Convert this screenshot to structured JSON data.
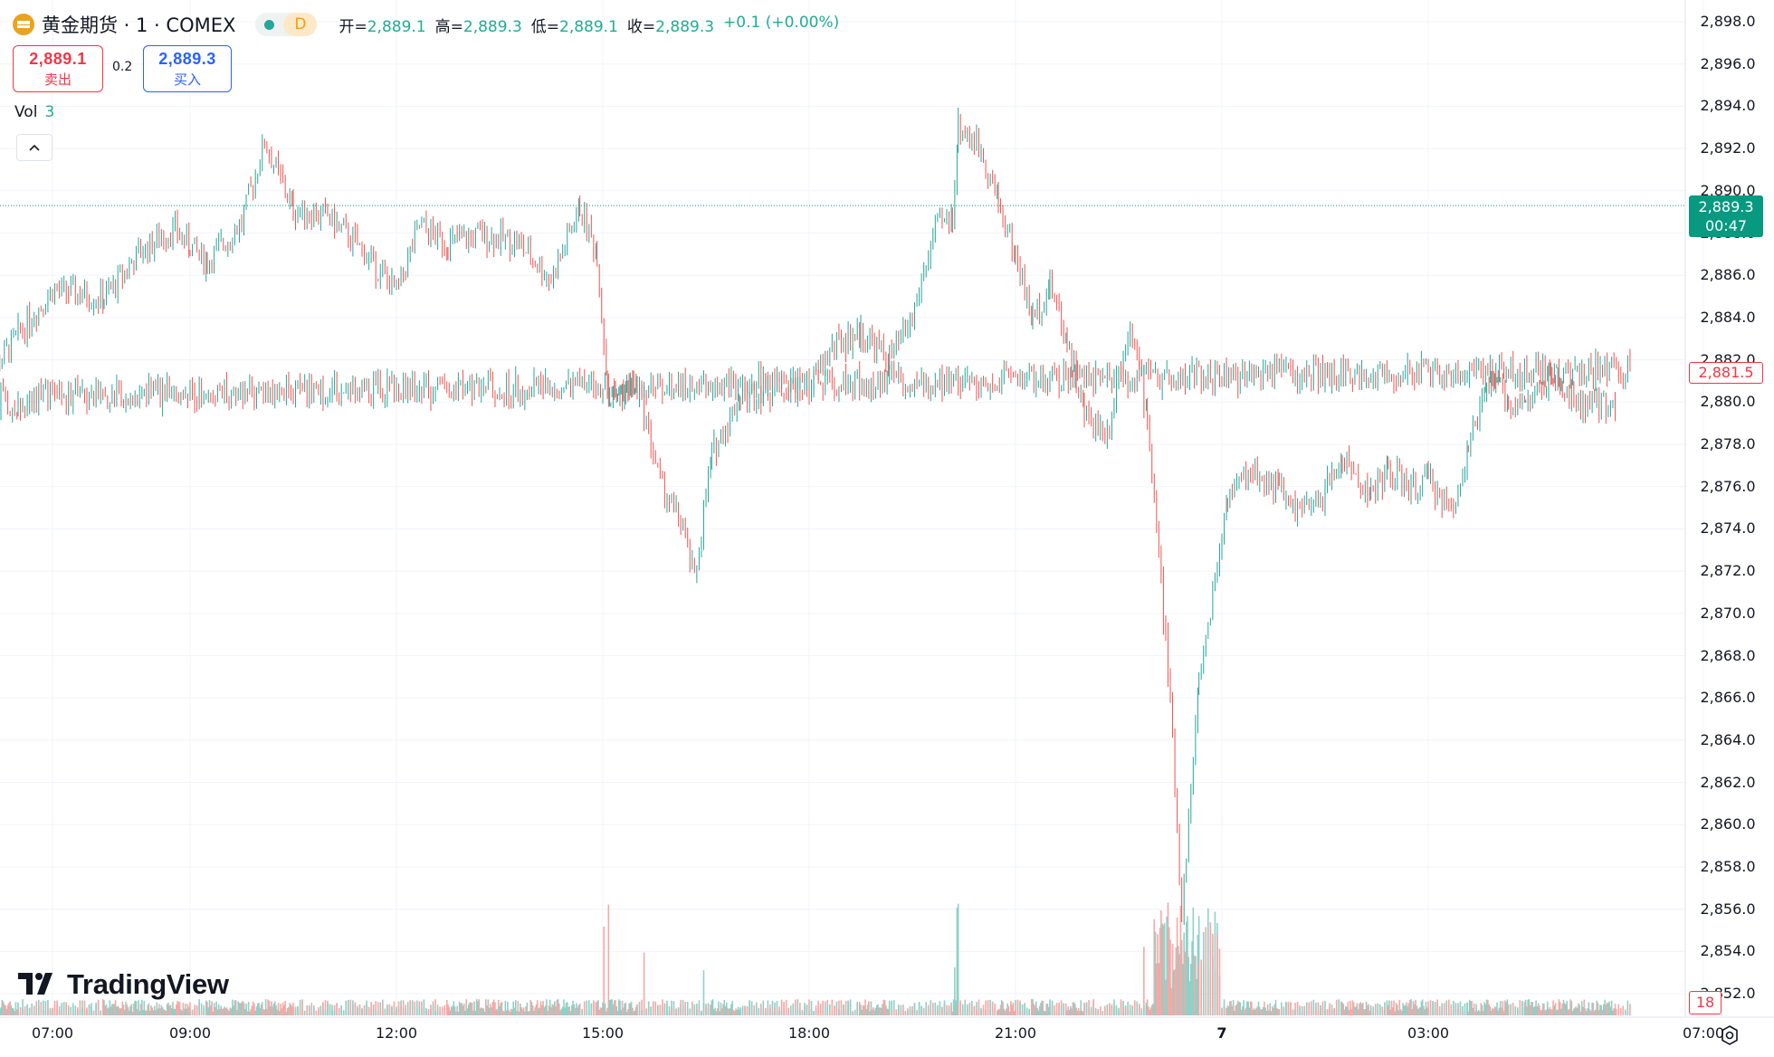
{
  "symbol": {
    "title": "黄金期货 · 1 · COMEX",
    "icon": "gold-bars-icon",
    "status_interval": "D"
  },
  "ohlc": {
    "open_label": "开=",
    "open": "2,889.1",
    "high_label": "高=",
    "high": "2,889.3",
    "low_label": "低=",
    "low": "2,889.1",
    "close_label": "收=",
    "close": "2,889.3",
    "change": "+0.1 (+0.00%)"
  },
  "trade": {
    "sell_price": "2,889.1",
    "sell_label": "卖出",
    "spread": "0.2",
    "buy_price": "2,889.3",
    "buy_label": "买入"
  },
  "volume_legend": {
    "label": "Vol",
    "value": "3"
  },
  "price_scale": {
    "ticks": [
      "2,898.0",
      "2,896.0",
      "2,894.0",
      "2,892.0",
      "2,890.0",
      "2,888.0",
      "2,886.0",
      "2,884.0",
      "2,882.0",
      "2,880.0",
      "2,878.0",
      "2,876.0",
      "2,874.0",
      "2,872.0",
      "2,870.0",
      "2,868.0",
      "2,866.0",
      "2,864.0",
      "2,862.0",
      "2,860.0",
      "2,858.0",
      "2,856.0",
      "2,854.0",
      "2,852.0"
    ],
    "last_price": "2,889.3",
    "countdown": "00:47",
    "line_price": "2,881.5",
    "volume_value": "18"
  },
  "time_scale": {
    "ticks": [
      "07:00",
      "09:00",
      "12:00",
      "15:00",
      "18:00",
      "21:00",
      "7",
      "03:00",
      "07:00"
    ]
  },
  "branding": {
    "logo_text": "TradingView"
  },
  "colors": {
    "up": "#26a69a",
    "down": "#ef5350",
    "up_volume": "#8fd0c8",
    "down_volume": "#f4a9a6",
    "last_price": "#089981",
    "grid": "#f0f3fa"
  },
  "chart_data": {
    "type": "candlestick",
    "symbol": "黄金期货 · 1 · COMEX",
    "interval": "1 minute",
    "y_axis": {
      "min": 2852.0,
      "max": 2898.0,
      "step": 2.0
    },
    "x_labels": [
      "07:00",
      "09:00",
      "12:00",
      "15:00",
      "18:00",
      "21:00",
      "7",
      "03:00",
      "07:00"
    ],
    "last_price": 2889.3,
    "price_line": 2881.5,
    "current_volume": 3,
    "close_path": [
      [
        "06:00",
        2880.8
      ],
      [
        "06:30",
        2883.2
      ],
      [
        "07:00",
        2885.3
      ],
      [
        "07:45",
        2884.9
      ],
      [
        "08:15",
        2887.0
      ],
      [
        "08:45",
        2888.2
      ],
      [
        "09:00",
        2887.4
      ],
      [
        "09:15",
        2886.6
      ],
      [
        "09:45",
        2888.5
      ],
      [
        "10:05",
        2892.3
      ],
      [
        "10:30",
        2889.1
      ],
      [
        "11:00",
        2888.8
      ],
      [
        "11:30",
        2887.2
      ],
      [
        "12:00",
        2885.2
      ],
      [
        "12:20",
        2888.3
      ],
      [
        "12:45",
        2887.5
      ],
      [
        "13:15",
        2887.9
      ],
      [
        "13:45",
        2887.6
      ],
      [
        "14:15",
        2885.8
      ],
      [
        "14:40",
        2889.2
      ],
      [
        "14:55",
        2887.0
      ],
      [
        "15:05",
        2880.1
      ],
      [
        "15:30",
        2880.9
      ],
      [
        "15:50",
        2876.2
      ],
      [
        "16:10",
        2874.0
      ],
      [
        "16:20",
        2871.5
      ],
      [
        "16:35",
        2877.5
      ],
      [
        "17:00",
        2880.3
      ],
      [
        "17:30",
        2880.6
      ],
      [
        "18:00",
        2880.7
      ],
      [
        "18:20",
        2882.6
      ],
      [
        "18:45",
        2883.3
      ],
      [
        "19:10",
        2882.0
      ],
      [
        "19:30",
        2884.0
      ],
      [
        "19:50",
        2888.2
      ],
      [
        "20:05",
        2888.8
      ],
      [
        "20:10",
        2893.1
      ],
      [
        "20:30",
        2892.0
      ],
      [
        "20:45",
        2889.5
      ],
      [
        "21:00",
        2886.9
      ],
      [
        "21:15",
        2883.9
      ],
      [
        "21:30",
        2885.6
      ],
      [
        "21:45",
        2883.0
      ],
      [
        "22:00",
        2879.4
      ],
      [
        "22:20",
        2878.6
      ],
      [
        "22:40",
        2884.0
      ],
      [
        "22:55",
        2879.3
      ],
      [
        "23:05",
        2872.8
      ],
      [
        "23:15",
        2865.8
      ],
      [
        "23:25",
        2855.8
      ],
      [
        "23:40",
        2866.8
      ],
      [
        "23:50",
        2870.2
      ],
      [
        "00:05",
        2875.6
      ],
      [
        "00:25",
        2876.7
      ],
      [
        "00:50",
        2876.0
      ],
      [
        "01:00",
        2875.0
      ],
      [
        "01:20",
        2874.9
      ],
      [
        "01:45",
        2877.3
      ],
      [
        "02:10",
        2875.6
      ],
      [
        "02:25",
        2876.8
      ],
      [
        "02:45",
        2875.8
      ],
      [
        "03:00",
        2876.4
      ],
      [
        "03:20",
        2874.8
      ],
      [
        "03:35",
        2877.8
      ],
      [
        "03:55",
        2881.2
      ],
      [
        "04:10",
        2880.0
      ],
      [
        "04:25",
        2879.9
      ],
      [
        "04:45",
        2881.0
      ],
      [
        "05:15",
        2879.8
      ],
      [
        "05:45",
        2880.0
      ],
      [
        "06:15",
        2880.3
      ],
      [
        "06:30",
        2879.8
      ],
      [
        "06:50",
        2880.3
      ],
      [
        "07:10",
        2881.6
      ]
    ]
  }
}
